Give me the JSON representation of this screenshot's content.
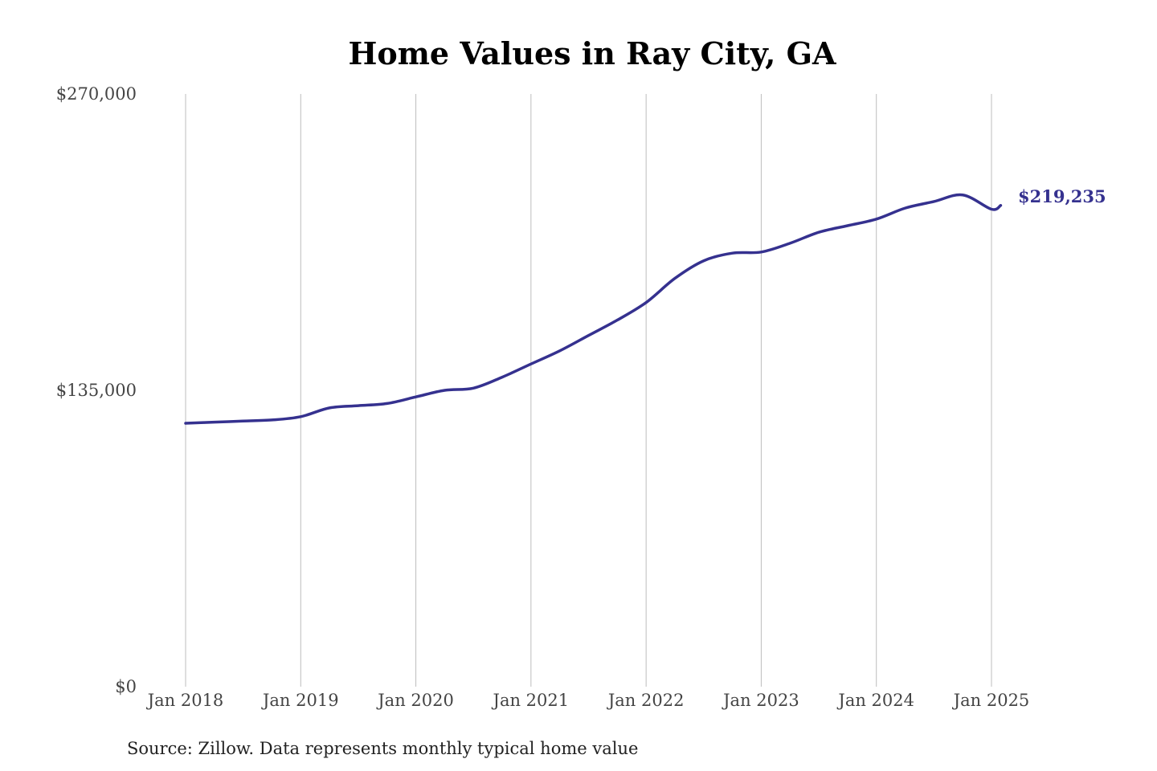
{
  "chart_data": {
    "type": "line",
    "title": "Home Values in Ray City, GA",
    "xlabel": "",
    "ylabel": "",
    "ylim": [
      0,
      270000
    ],
    "y_ticks": [
      "$0",
      "$135,000",
      "$270,000"
    ],
    "y_tick_values": [
      0,
      135000,
      270000
    ],
    "x_ticks": [
      "Jan 2018",
      "Jan 2019",
      "Jan 2020",
      "Jan 2021",
      "Jan 2022",
      "Jan 2023",
      "Jan 2024",
      "Jan 2025"
    ],
    "x_tick_values": [
      2018.0,
      2019.0,
      2020.0,
      2021.0,
      2022.0,
      2023.0,
      2024.0,
      2025.0
    ],
    "xlim": [
      2018.0,
      2025.0
    ],
    "grid": "vertical",
    "series": [
      {
        "color": "#35318f",
        "x": [
          2018.0,
          2018.25,
          2018.5,
          2018.75,
          2019.0,
          2019.25,
          2019.5,
          2019.75,
          2020.0,
          2020.25,
          2020.5,
          2020.75,
          2021.0,
          2021.25,
          2021.5,
          2021.75,
          2022.0,
          2022.25,
          2022.5,
          2022.75,
          2023.0,
          2023.25,
          2023.5,
          2023.75,
          2024.0,
          2024.25,
          2024.5,
          2024.75,
          2025.0,
          2025.08
        ],
        "values": [
          120000,
          120500,
          121000,
          121500,
          123000,
          127000,
          128000,
          129000,
          132000,
          135000,
          136000,
          141000,
          147000,
          153000,
          160000,
          167000,
          175000,
          186000,
          194000,
          197500,
          198000,
          202000,
          207000,
          210000,
          213000,
          218000,
          221000,
          224000,
          217500,
          219235
        ]
      }
    ],
    "end_label": "$219,235",
    "source_note": "Source: Zillow. Data represents monthly typical home value"
  }
}
